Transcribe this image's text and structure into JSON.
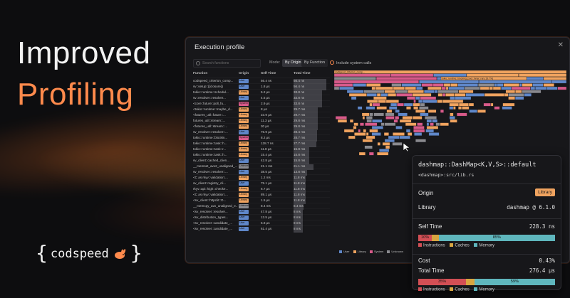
{
  "hero": {
    "line1": "Improved",
    "line2": "Profiling"
  },
  "brand": {
    "name": "codspeed"
  },
  "colors": {
    "accent": "#ff8a4c",
    "user": "#5f87c9",
    "library": "#f0a35f",
    "system": "#d85a8a",
    "unknown": "#8a8a8f",
    "instructions": "#d24f55",
    "caches": "#d8a641",
    "memory": "#5fb6bd"
  },
  "window": {
    "title": "Execution profile",
    "search_placeholder": "Search functions",
    "mode_label": "Mode:",
    "mode_by_origin": "By Origin",
    "mode_by_function": "By Function",
    "include_system_calls": "Include system calls"
  },
  "table": {
    "headers": {
      "function": "Function",
      "origin": "Origin",
      "self": "Self Time",
      "total": "Total Time"
    },
    "rows": [
      {
        "fn": "codspeed_criterion_comp...",
        "origin": "User",
        "self": "56.4 ns",
        "total": "56.4 ns"
      },
      {
        "fn": "sv::setup::{{closure}}",
        "origin": "User",
        "self": "1.8 µs",
        "total": "56.4 ns"
      },
      {
        "fn": "tokio::runtime::schedul...",
        "origin": "Library",
        "self": "5.2 µs",
        "total": "33.8 ns"
      },
      {
        "fn": "sv::resolver::resolver...",
        "origin": "User",
        "self": "4.5 µs",
        "total": "33.8 ns"
      },
      {
        "fn": "<core::future::poll_fu...",
        "origin": "System",
        "self": "2.9 µs",
        "total": "33.8 ns"
      },
      {
        "fn": "<tokio::runtime::maybe_d...",
        "origin": "Library",
        "self": "8 µs",
        "total": "29.7 ms"
      },
      {
        "fn": "<futures_util::future::...",
        "origin": "Library",
        "self": "23.9 µs",
        "total": "29.7 ms"
      },
      {
        "fn": "futures_util::stream::...",
        "origin": "Library",
        "self": "11.3 µs",
        "total": "29.8 ms"
      },
      {
        "fn": "<futures_util::stream::...",
        "origin": "Library",
        "self": "30 µs",
        "total": "29.8 ms"
      },
      {
        "fn": "sv_resolver::resolver::...",
        "origin": "User",
        "self": "76.9 µs",
        "total": "28.4 ms"
      },
      {
        "fn": "tokio::runtime::blockin...",
        "origin": "System",
        "self": "8.2 µs",
        "total": "28.7 ms"
      },
      {
        "fn": "tokio::runtime::task::h...",
        "origin": "Library",
        "self": "128.7 ns",
        "total": "27.7 ms"
      },
      {
        "fn": "tokio::runtime::task::r...",
        "origin": "Library",
        "self": "11.8 µs",
        "total": "15.8 ms"
      },
      {
        "fn": "tokio::runtime::task::h...",
        "origin": "Library",
        "self": "15.4 µs",
        "total": "15.8 ms"
      },
      {
        "fn": "sv_client::cached_clien...",
        "origin": "User",
        "self": "42.8 µs",
        "total": "15.8 ms"
      },
      {
        "fn": "__memset_avx2_unaligned_...",
        "origin": "Unknown",
        "self": "21.1 ms",
        "total": "21.1 ms"
      },
      {
        "fn": "sv_resolver::resolver::...",
        "origin": "User",
        "self": "38.5 µs",
        "total": "13.8 ms"
      },
      {
        "fn": "<C as rkyv::validation:...",
        "origin": "Library",
        "self": "1.2 ms",
        "total": "11.8 ms"
      },
      {
        "fn": "sv_client::registry_cli...",
        "origin": "User",
        "self": "75.1 µs",
        "total": "11.8 ms"
      },
      {
        "fn": "rkyv::api::high::checke...",
        "origin": "Library",
        "self": "6.7 µs",
        "total": "11.8 ms"
      },
      {
        "fn": "<C as rkyv::validation:...",
        "origin": "Library",
        "self": "89.1 µs",
        "total": "11.8 ms"
      },
      {
        "fn": "<sv_client::httpclit::O...",
        "origin": "Library",
        "self": "1.5 µs",
        "total": "11.8 ms"
      },
      {
        "fn": "__memcpy_avx_unaligned_e...",
        "origin": "Unknown",
        "self": "8.4 ms",
        "total": "8.4 ms"
      },
      {
        "fn": "<sv_resolver::resolver...",
        "origin": "User",
        "self": "47.8 µs",
        "total": "8 ms"
      },
      {
        "fn": "<sv_distribution_types...",
        "origin": "User",
        "self": "13.5 µs",
        "total": "8 ms"
      },
      {
        "fn": "<sv_resolver::candidate_...",
        "origin": "User",
        "self": "5.8 µs",
        "total": "8 ms"
      },
      {
        "fn": "<sv_resolver::candidate_...",
        "origin": "User",
        "self": "61.4 µs",
        "total": "8 ms"
      }
    ]
  },
  "flame": {
    "root": "codspeed_criterion_comp...",
    "tooltip": "tokio::runtime::blocking::pool::Inner::run (19.7%)"
  },
  "legend": {
    "user": "User",
    "library": "Library",
    "system": "System",
    "unknown": "Unknown"
  },
  "panel": {
    "title": "dashmap::DashMap<K,V,S>::default",
    "source": "<dashmap>:src/lib.rs",
    "origin_label": "Origin",
    "origin_value": "Library",
    "library_label": "Library",
    "library_value": "dashmap @ 6.1.0",
    "self_time_label": "Self Time",
    "self_time_value": "228.3 ns",
    "self_bar": {
      "instructions": 10,
      "caches": 5,
      "memory": 85,
      "instr_label": "10%",
      "mem_label": "85%"
    },
    "legend_instructions": "Instructions",
    "legend_caches": "Caches",
    "legend_memory": "Memory",
    "cost_label": "Cost",
    "cost_value": "0.43%",
    "total_time_label": "Total Time",
    "total_time_value": "276.4 µs",
    "total_bar": {
      "instructions": 35,
      "caches": 6,
      "memory": 59,
      "instr_label": "35%",
      "mem_label": "59%"
    }
  }
}
